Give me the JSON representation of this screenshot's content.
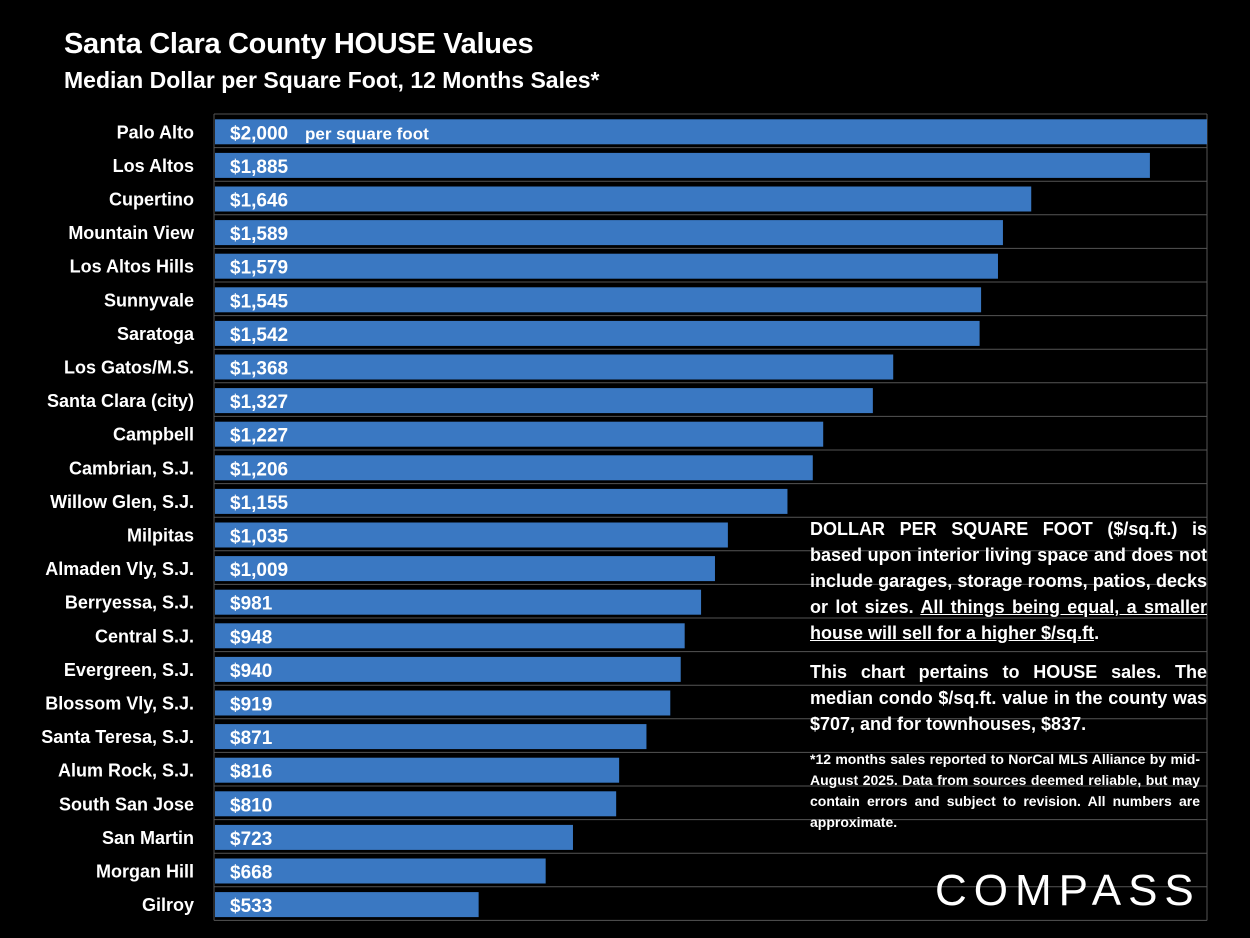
{
  "header": {
    "title": "Santa Clara County HOUSE Values",
    "subtitle": "Median Dollar per Square Foot, 12 Months Sales*"
  },
  "chart_data": {
    "type": "bar",
    "orientation": "horizontal",
    "categories": [
      "Palo Alto",
      "Los Altos",
      "Cupertino",
      "Mountain View",
      "Los Altos Hills",
      "Sunnyvale",
      "Saratoga",
      "Los Gatos/M.S.",
      "Santa Clara (city)",
      "Campbell",
      "Cambrian, S.J.",
      "Willow Glen, S.J.",
      "Milpitas",
      "Almaden Vly, S.J.",
      "Berryessa, S.J.",
      "Central S.J.",
      "Evergreen, S.J.",
      "Blossom Vly, S.J.",
      "Santa Teresa, S.J.",
      "Alum Rock, S.J.",
      "South San Jose",
      "San Martin",
      "Morgan Hill",
      "Gilroy"
    ],
    "values": [
      2000,
      1885,
      1646,
      1589,
      1579,
      1545,
      1542,
      1368,
      1327,
      1227,
      1206,
      1155,
      1035,
      1009,
      981,
      948,
      940,
      919,
      871,
      816,
      810,
      723,
      668,
      533
    ],
    "data_labels": [
      "$2,000",
      "$1,885",
      "$1,646",
      "$1,589",
      "$1,579",
      "$1,545",
      "$1,542",
      "$1,368",
      "$1,327",
      "$1,227",
      "$1,206",
      "$1,155",
      "$1,035",
      "$1,009",
      "$981",
      "$948",
      "$940",
      "$919",
      "$871",
      "$816",
      "$810",
      "$723",
      "$668",
      "$533"
    ],
    "annotation": "per square foot",
    "xlim": [
      0,
      2000
    ],
    "bar_color": "#3a78c2",
    "grid": true
  },
  "notes": {
    "p1_text": "DOLLAR PER SQUARE FOOT ($/sq.ft.) is based upon interior living space and does not include garages, storage rooms, patios, decks or lot sizes. ",
    "p1_underlined": "All things being equal, a smaller house will sell for a higher $/sq.ft",
    "p1_end": ".",
    "p2": "This chart pertains to HOUSE sales. The median condo $/sq.ft. value in the county was $707, and for townhouses, $837.",
    "footnote": "*12 months sales reported to NorCal MLS Alliance by mid-August 2025. Data from sources deemed reliable, but may contain errors and subject to revision. All numbers are approximate."
  },
  "brand": {
    "logo_text": "COMPASS"
  }
}
